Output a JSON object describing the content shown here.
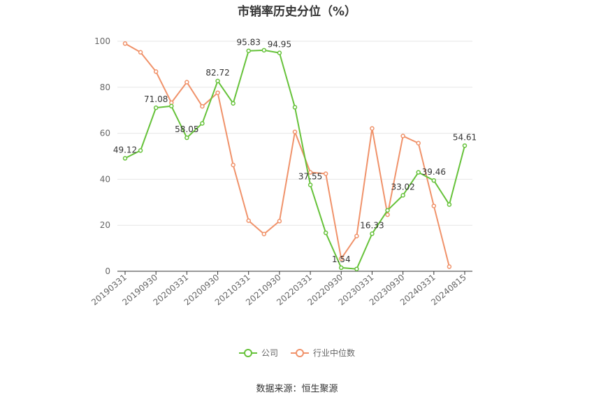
{
  "title": "市销率历史分位（%）",
  "source": "数据来源：恒生聚源",
  "colors": {
    "company": "#66c23a",
    "industry": "#f0926a",
    "grid": "#e6e6e6",
    "axis": "#666666"
  },
  "chart_data": {
    "type": "line",
    "title": "市销率历史分位（%）",
    "ylim": [
      0,
      100
    ],
    "yticks": [
      0,
      20,
      40,
      60,
      80,
      100
    ],
    "x": [
      "20190331",
      "20190630",
      "20190930",
      "20191231",
      "20200331",
      "20200630",
      "20200930",
      "20201231",
      "20210331",
      "20210630",
      "20210930",
      "20211231",
      "20220331",
      "20220630",
      "20220930",
      "20221231",
      "20230331",
      "20230630",
      "20230930",
      "20231231",
      "20240331",
      "20240630",
      "20240815"
    ],
    "xtick_labels": [
      "20190331",
      "20190930",
      "20200331",
      "20200930",
      "20210331",
      "20210930",
      "20220331",
      "20220930",
      "20230331",
      "20230930",
      "20240331",
      "20240815"
    ],
    "legend_position": "bottom",
    "grid": true,
    "series": [
      {
        "name": "公司",
        "values": [
          49.12,
          52.5,
          71.08,
          71.8,
          58.05,
          64.3,
          82.72,
          73.0,
          95.83,
          96.1,
          94.95,
          71.3,
          37.55,
          16.7,
          1.54,
          1.0,
          16.33,
          26.5,
          33.02,
          43.0,
          39.46,
          29.0,
          54.61
        ]
      },
      {
        "name": "行业中位数",
        "values": [
          99.0,
          95.2,
          86.8,
          73.3,
          82.2,
          71.7,
          77.6,
          46.2,
          22.0,
          16.2,
          21.8,
          60.6,
          43.0,
          42.4,
          5.5,
          15.3,
          62.1,
          24.6,
          58.8,
          55.7,
          28.4,
          2.0,
          null
        ]
      }
    ],
    "data_labels": [
      {
        "series": 0,
        "index": 0,
        "text": "49.12"
      },
      {
        "series": 0,
        "index": 2,
        "text": "71.08"
      },
      {
        "series": 0,
        "index": 4,
        "text": "58.05"
      },
      {
        "series": 0,
        "index": 6,
        "text": "82.72"
      },
      {
        "series": 0,
        "index": 8,
        "text": "95.83"
      },
      {
        "series": 0,
        "index": 10,
        "text": "94.95"
      },
      {
        "series": 0,
        "index": 12,
        "text": "37.55"
      },
      {
        "series": 0,
        "index": 14,
        "text": "1.54"
      },
      {
        "series": 0,
        "index": 16,
        "text": "16.33"
      },
      {
        "series": 0,
        "index": 18,
        "text": "33.02"
      },
      {
        "series": 0,
        "index": 20,
        "text": "39.46"
      },
      {
        "series": 0,
        "index": 22,
        "text": "54.61"
      }
    ]
  }
}
